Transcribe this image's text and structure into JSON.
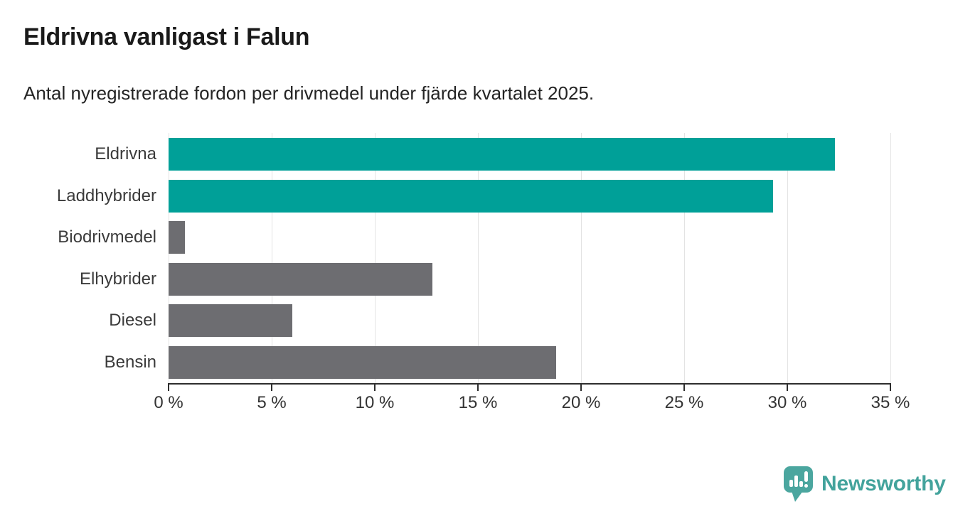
{
  "header": {
    "title": "Eldrivna vanligast i Falun",
    "subtitle": "Antal nyregistrerade fordon per drivmedel under fjärde kvartalet 2025."
  },
  "chart_data": {
    "type": "bar",
    "orientation": "horizontal",
    "title": "Eldrivna vanligast i Falun",
    "subtitle": "Antal nyregistrerade fordon per drivmedel under fjärde kvartalet 2025.",
    "categories": [
      "Eldrivna",
      "Laddhybrider",
      "Biodrivmedel",
      "Elhybrider",
      "Diesel",
      "Bensin"
    ],
    "values": [
      32.3,
      29.3,
      0.8,
      12.8,
      6.0,
      18.8
    ],
    "unit": "%",
    "xlim": [
      0,
      35
    ],
    "x_tick_values": [
      0,
      5,
      10,
      15,
      20,
      25,
      30,
      35
    ],
    "x_tick_labels": [
      "0 %",
      "5 %",
      "10 %",
      "15 %",
      "20 %",
      "25 %",
      "30 %",
      "35 %"
    ],
    "grid": true,
    "legend": "none",
    "bar_colors": [
      "#00a098",
      "#00a098",
      "#6d6d71",
      "#6d6d71",
      "#6d6d71",
      "#6d6d71"
    ],
    "accent_color": "#00a098",
    "neutral_color": "#6d6d71"
  },
  "branding": {
    "logo_text": "Newsworthy",
    "logo_color": "#43a39c",
    "logo_mark_color": "#4ba69f",
    "logo_icon": "newsworthy-pin-chart-icon"
  }
}
